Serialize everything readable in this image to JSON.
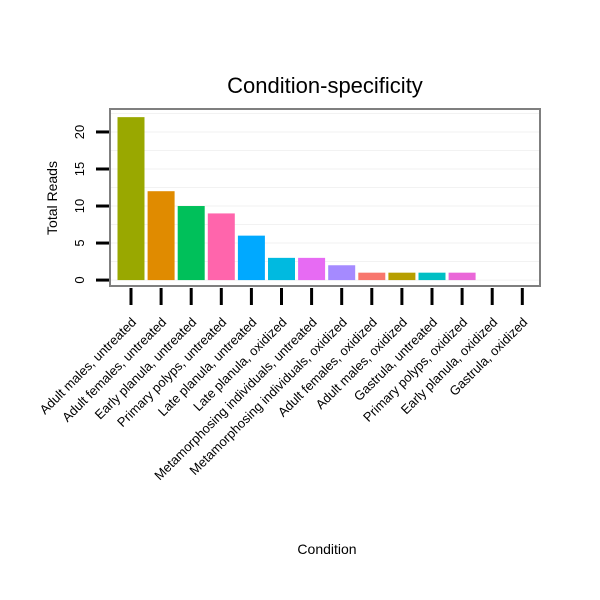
{
  "chart_data": {
    "type": "bar",
    "title": "Condition-specificity",
    "xlabel": "Condition",
    "ylabel": "Total Reads",
    "categories": [
      "Adult males, untreated",
      "Adult females, untreated",
      "Early planula, untreated",
      "Primary polyps, untreated",
      "Late planula, untreated",
      "Late planula, oxidized",
      "Metamorphosing individuals, untreated",
      "Metamorphosing individuals, oxidized",
      "Adult females, oxidized",
      "Adult males, oxidized",
      "Gastrula, untreated",
      "Primary polyps, oxidized",
      "Early planula, oxidized",
      "Gastrula, oxidized"
    ],
    "values": [
      22,
      12,
      10,
      9,
      6,
      3,
      3,
      2,
      1,
      1,
      1,
      1,
      0,
      0
    ],
    "colors": [
      "#99A800",
      "#E08B00",
      "#00C05A",
      "#FF65AC",
      "#00A9FF",
      "#00BAE0",
      "#E76BF3",
      "#A58AFF",
      "#F8766D",
      "#B79F00",
      "#00BFC4",
      "#EA67D8",
      "#ffffff",
      "#ffffff"
    ],
    "ylim": [
      -0.8,
      23.1
    ],
    "yticks": [
      0,
      5,
      10,
      15,
      20
    ],
    "grid": true,
    "legend": "none"
  }
}
